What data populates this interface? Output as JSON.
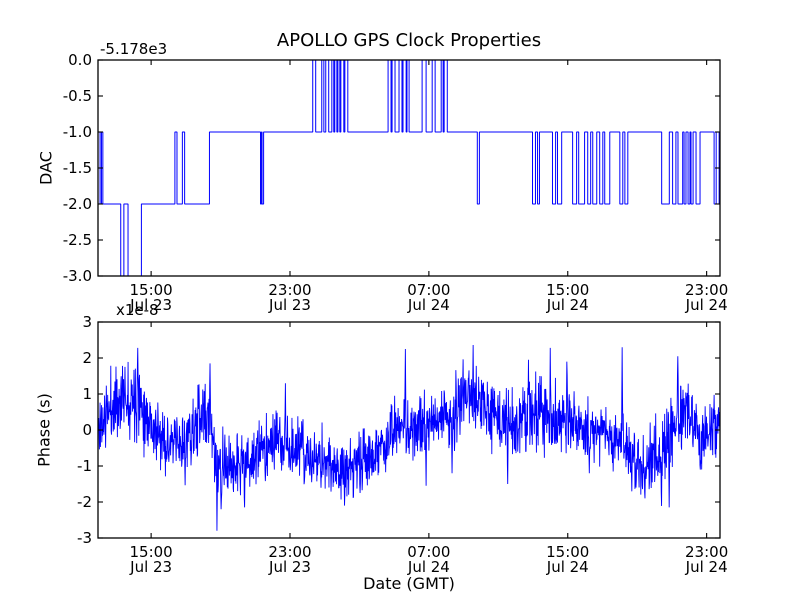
{
  "figure": {
    "title": "APOLLO GPS Clock Properties",
    "background_color": "#ffffff",
    "line_color": "#0000ff",
    "axis_color": "#000000"
  },
  "chart_data": [
    {
      "type": "line",
      "subtype": "step",
      "name": "dac",
      "title": "APOLLO GPS Clock Properties",
      "ylabel": "DAC",
      "offset_text": "-5.178e3",
      "ylim": [
        -3,
        0
      ],
      "yticks": {
        "values": [
          0,
          -0.5,
          -1,
          -1.5,
          -2,
          -2.5,
          -3
        ],
        "labels": [
          "0.0",
          "-0.5",
          "-1.0",
          "-1.5",
          "-2.0",
          "-2.5",
          "-3.0"
        ]
      },
      "xlim": [
        0,
        35.83
      ],
      "x_unit": "hours since Jul 23 12:00 GMT",
      "xticks": {
        "t": [
          3.06,
          11.06,
          19.06,
          27.06,
          35.06
        ],
        "time": [
          "15:00",
          "23:00",
          "07:00",
          "15:00",
          "23:00"
        ],
        "date": [
          "Jul 23",
          "Jul 23",
          "Jul 24",
          "Jul 24",
          "Jul 24"
        ]
      },
      "grid": false,
      "legend": "none",
      "line_color": "#0000ff",
      "start_value": -1,
      "steps": [
        [
          0.12,
          -2
        ],
        [
          0.2,
          -1
        ],
        [
          0.28,
          -2
        ],
        [
          1.31,
          -3
        ],
        [
          1.49,
          -2
        ],
        [
          1.73,
          -3
        ],
        [
          2.5,
          -2
        ],
        [
          4.43,
          -1
        ],
        [
          4.55,
          -2
        ],
        [
          4.86,
          -1
        ],
        [
          4.99,
          -2
        ],
        [
          6.42,
          -1
        ],
        [
          9.36,
          -2
        ],
        [
          9.42,
          -1
        ],
        [
          9.45,
          -2
        ],
        [
          9.54,
          -1
        ],
        [
          12.37,
          0
        ],
        [
          12.54,
          -1
        ],
        [
          12.89,
          0
        ],
        [
          13.01,
          -1
        ],
        [
          13.12,
          0
        ],
        [
          13.29,
          -1
        ],
        [
          13.47,
          0
        ],
        [
          13.58,
          -1
        ],
        [
          13.64,
          0
        ],
        [
          13.76,
          -1
        ],
        [
          13.82,
          0
        ],
        [
          13.93,
          -1
        ],
        [
          13.99,
          0
        ],
        [
          14.16,
          -1
        ],
        [
          14.22,
          0
        ],
        [
          14.39,
          -1
        ],
        [
          16.71,
          0
        ],
        [
          16.88,
          -1
        ],
        [
          16.94,
          0
        ],
        [
          17.11,
          -1
        ],
        [
          17.34,
          0
        ],
        [
          17.51,
          -1
        ],
        [
          17.57,
          0
        ],
        [
          17.75,
          -1
        ],
        [
          17.8,
          0
        ],
        [
          17.92,
          -1
        ],
        [
          18.67,
          0
        ],
        [
          18.9,
          -1
        ],
        [
          19.25,
          0
        ],
        [
          19.42,
          -1
        ],
        [
          19.77,
          0
        ],
        [
          19.88,
          -1
        ],
        [
          19.94,
          0
        ],
        [
          20.12,
          -1
        ],
        [
          21.85,
          -2
        ],
        [
          21.97,
          -1
        ],
        [
          25.03,
          -2
        ],
        [
          25.2,
          -1
        ],
        [
          25.32,
          -2
        ],
        [
          25.43,
          -1
        ],
        [
          26.18,
          -2
        ],
        [
          26.36,
          -1
        ],
        [
          26.47,
          -2
        ],
        [
          26.71,
          -1
        ],
        [
          27.34,
          -2
        ],
        [
          27.57,
          -1
        ],
        [
          27.69,
          -2
        ],
        [
          28.03,
          -1
        ],
        [
          28.21,
          -2
        ],
        [
          28.38,
          -1
        ],
        [
          28.5,
          -2
        ],
        [
          28.73,
          -1
        ],
        [
          28.9,
          -2
        ],
        [
          29.08,
          -1
        ],
        [
          29.19,
          -2
        ],
        [
          29.48,
          -1
        ],
        [
          30.06,
          -2
        ],
        [
          30.23,
          -1
        ],
        [
          30.35,
          -2
        ],
        [
          30.52,
          -1
        ],
        [
          32.47,
          -2
        ],
        [
          32.91,
          -1
        ],
        [
          33.1,
          -2
        ],
        [
          33.29,
          -1
        ],
        [
          33.41,
          -2
        ],
        [
          33.68,
          -1
        ],
        [
          33.76,
          -2
        ],
        [
          33.87,
          -1
        ],
        [
          33.99,
          -2
        ],
        [
          34.1,
          -1
        ],
        [
          34.16,
          -2
        ],
        [
          34.28,
          -1
        ],
        [
          34.45,
          -2
        ],
        [
          34.68,
          -1
        ],
        [
          35.49,
          -2
        ],
        [
          35.61,
          -1
        ],
        [
          35.78,
          -2
        ]
      ]
    },
    {
      "type": "line",
      "name": "phase",
      "ylabel": "Phase (s)",
      "multiplier_text": "x1e-8",
      "units": "1e-8 s",
      "xlabel": "Date (GMT)",
      "ylim": [
        -3,
        3
      ],
      "yticks": {
        "values": [
          3,
          2,
          1,
          0,
          -1,
          -2,
          -3
        ],
        "labels": [
          "3",
          "2",
          "1",
          "0",
          "-1",
          "-2",
          "-3"
        ]
      },
      "xlim": [
        0,
        35.83
      ],
      "x_unit": "hours since Jul 23 12:00 GMT",
      "xticks": {
        "t": [
          3.06,
          11.06,
          19.06,
          27.06,
          35.06
        ],
        "time": [
          "15:00",
          "23:00",
          "07:00",
          "15:00",
          "23:00"
        ],
        "date": [
          "Jul 23",
          "Jul 23",
          "Jul 24",
          "Jul 24",
          "Jul 24"
        ]
      },
      "grid": false,
      "legend": "none",
      "line_color": "#0000ff",
      "trend": [
        [
          0,
          0.0
        ],
        [
          0.7,
          0.6
        ],
        [
          1.5,
          0.95
        ],
        [
          2.3,
          1.0
        ],
        [
          2.8,
          0.45
        ],
        [
          3.5,
          -0.2
        ],
        [
          4.3,
          -0.45
        ],
        [
          5.0,
          -0.4
        ],
        [
          5.5,
          0.0
        ],
        [
          6.0,
          0.35
        ],
        [
          6.45,
          0.4
        ],
        [
          6.7,
          -0.6
        ],
        [
          6.95,
          -1.1
        ],
        [
          7.6,
          -1.0
        ],
        [
          8.6,
          -0.9
        ],
        [
          9.4,
          -0.6
        ],
        [
          10.2,
          -0.3
        ],
        [
          11.0,
          -0.45
        ],
        [
          11.7,
          -0.6
        ],
        [
          12.2,
          -0.85
        ],
        [
          13.0,
          -0.9
        ],
        [
          14.2,
          -1.0
        ],
        [
          15.2,
          -0.95
        ],
        [
          16.2,
          -0.55
        ],
        [
          17.0,
          -0.1
        ],
        [
          17.8,
          0.1
        ],
        [
          18.7,
          0.05
        ],
        [
          19.6,
          0.2
        ],
        [
          20.5,
          0.5
        ],
        [
          21.3,
          0.9
        ],
        [
          21.7,
          1.05
        ],
        [
          22.4,
          0.5
        ],
        [
          23.2,
          0.35
        ],
        [
          23.9,
          -0.1
        ],
        [
          24.6,
          0.3
        ],
        [
          25.3,
          0.5
        ],
        [
          26.0,
          0.3
        ],
        [
          26.8,
          0.15
        ],
        [
          27.6,
          0.2
        ],
        [
          28.4,
          0.0
        ],
        [
          29.2,
          -0.1
        ],
        [
          29.9,
          -0.2
        ],
        [
          30.6,
          -0.6
        ],
        [
          31.3,
          -0.8
        ],
        [
          32.0,
          -0.75
        ],
        [
          32.7,
          -0.6
        ],
        [
          33.3,
          0.3
        ],
        [
          33.8,
          0.6
        ],
        [
          34.3,
          0.1
        ],
        [
          34.9,
          -0.15
        ],
        [
          35.5,
          0.1
        ],
        [
          35.83,
          0.2
        ]
      ],
      "noise_sigma": [
        [
          0,
          0.45
        ],
        [
          2,
          0.5
        ],
        [
          4,
          0.4
        ],
        [
          6,
          0.5
        ],
        [
          7,
          0.45
        ],
        [
          9,
          0.4
        ],
        [
          12,
          0.45
        ],
        [
          14,
          0.45
        ],
        [
          17,
          0.4
        ],
        [
          19,
          0.35
        ],
        [
          21,
          0.5
        ],
        [
          23,
          0.4
        ],
        [
          25,
          0.55
        ],
        [
          27,
          0.45
        ],
        [
          29,
          0.4
        ],
        [
          31,
          0.45
        ],
        [
          33,
          0.55
        ],
        [
          35.83,
          0.45
        ]
      ],
      "spikes": [
        [
          2.3,
          2.28
        ],
        [
          6.45,
          1.85
        ],
        [
          6.85,
          -2.8
        ],
        [
          7.1,
          -2.2
        ],
        [
          8.45,
          -2.15
        ],
        [
          10.8,
          1.3
        ],
        [
          12.3,
          -1.45
        ],
        [
          14.2,
          -2.1
        ],
        [
          15.1,
          -1.75
        ],
        [
          17.7,
          2.25
        ],
        [
          18.9,
          -1.55
        ],
        [
          20.4,
          -1.2
        ],
        [
          21.6,
          2.36
        ],
        [
          23.6,
          -1.5
        ],
        [
          24.8,
          1.95
        ],
        [
          26.05,
          2.28
        ],
        [
          27.0,
          1.9
        ],
        [
          28.3,
          -1.2
        ],
        [
          30.2,
          2.3
        ],
        [
          31.0,
          -1.6
        ],
        [
          31.5,
          -1.9
        ],
        [
          32.9,
          -2.15
        ],
        [
          33.4,
          2.05
        ],
        [
          34.7,
          -1.1
        ]
      ],
      "seed": 11,
      "n_samples": 1800
    }
  ]
}
